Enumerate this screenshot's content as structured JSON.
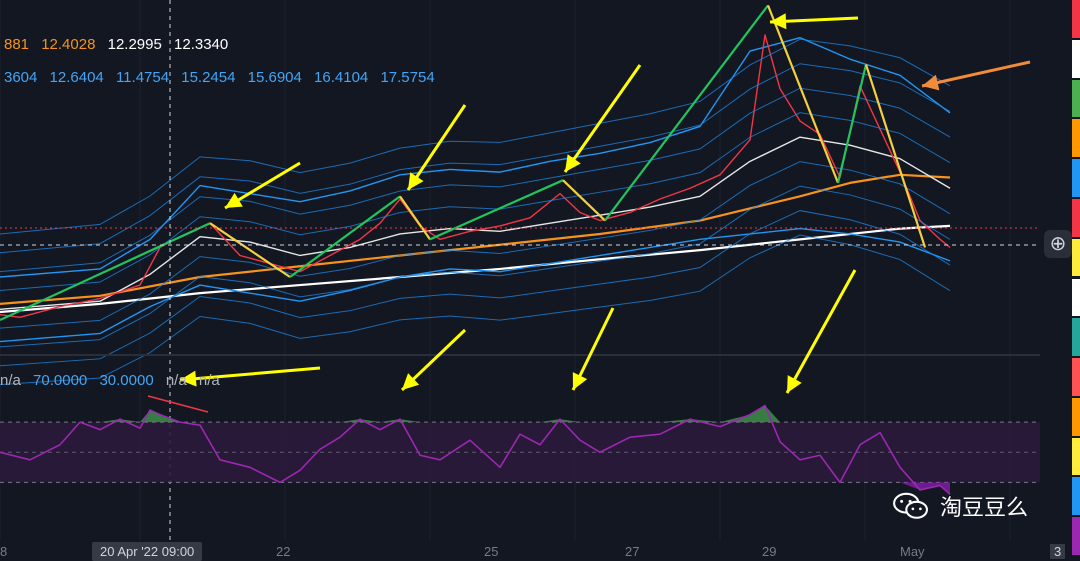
{
  "chart_data": [
    {
      "type": "line",
      "title": "",
      "xlabel": "",
      "ylabel": "",
      "x_ticks": [
        "8",
        "20 Apr '22  09:00",
        "22",
        "25",
        "27",
        "29",
        "May",
        "3"
      ],
      "legend_values": {
        "row1": [
          "881",
          "12.4028",
          "12.2995",
          "12.3340"
        ],
        "row2": [
          "3604",
          "12.6404",
          "11.4754",
          "15.2454",
          "15.6904",
          "16.4104",
          "17.5754"
        ]
      },
      "series": [
        {
          "name": "",
          "color": "#ffffff",
          "x": [
            0,
            100,
            200,
            300,
            400,
            500,
            600,
            700,
            800,
            900,
            950
          ],
          "values": [
            11.4,
            11.55,
            11.75,
            11.9,
            12.05,
            12.2,
            12.38,
            12.55,
            12.75,
            12.95,
            13.0
          ]
        },
        {
          "name": "",
          "color": "#f7931a",
          "x": [
            0,
            100,
            200,
            300,
            400,
            500,
            600,
            700,
            800,
            850,
            900,
            950
          ],
          "values": [
            11.55,
            11.7,
            12.05,
            12.25,
            12.45,
            12.65,
            12.85,
            13.1,
            13.55,
            13.8,
            13.95,
            13.9
          ]
        },
        {
          "name": "",
          "color": "#e6e6e6",
          "x": [
            0,
            100,
            150,
            200,
            250,
            300,
            350,
            400,
            450,
            500,
            550,
            600,
            650,
            700,
            750,
            800,
            850,
            900,
            950
          ],
          "values": [
            11.45,
            11.6,
            12.1,
            12.8,
            12.7,
            12.45,
            12.6,
            12.85,
            12.95,
            12.9,
            13.05,
            13.2,
            13.35,
            13.55,
            14.2,
            14.65,
            14.5,
            14.25,
            13.7
          ]
        },
        {
          "name": "",
          "color": "#2196f3",
          "x": [
            0,
            100,
            150,
            200,
            250,
            300,
            350,
            400,
            450,
            500,
            550,
            600,
            650,
            700,
            750,
            800,
            850,
            900,
            950
          ],
          "values": [
            12.05,
            12.2,
            12.75,
            13.75,
            13.6,
            13.45,
            13.65,
            13.95,
            14.05,
            14.0,
            14.2,
            14.35,
            14.55,
            14.85,
            16.25,
            16.5,
            16.1,
            15.8,
            15.1
          ]
        },
        {
          "name": "",
          "color": "#2196f3",
          "x": [
            0,
            100,
            150,
            200,
            250,
            300,
            350,
            400,
            450,
            500,
            550,
            600,
            650,
            700,
            750,
            800,
            850,
            900,
            950
          ],
          "values": [
            10.85,
            11.0,
            11.5,
            11.9,
            11.75,
            11.6,
            11.8,
            12.05,
            12.2,
            12.15,
            12.3,
            12.45,
            12.6,
            12.75,
            12.85,
            12.95,
            12.85,
            12.7,
            12.35
          ]
        },
        {
          "name": "",
          "color": "#f23645",
          "x": [
            0,
            20,
            60,
            100,
            140,
            160,
            180,
            210,
            240,
            270,
            300,
            330,
            360,
            380,
            400,
            420,
            440,
            470,
            500,
            530,
            560,
            580,
            600,
            630,
            660,
            690,
            720,
            750,
            765,
            780,
            800,
            820,
            840,
            860,
            880,
            900,
            920,
            940,
            950
          ],
          "values": [
            11.35,
            11.3,
            11.5,
            11.65,
            11.9,
            12.6,
            12.8,
            13.05,
            12.45,
            12.3,
            12.15,
            12.45,
            12.75,
            13.05,
            13.5,
            13.0,
            12.75,
            12.9,
            13.0,
            13.15,
            13.6,
            13.25,
            13.1,
            13.25,
            13.5,
            13.7,
            13.95,
            14.6,
            16.55,
            15.55,
            14.95,
            14.7,
            13.9,
            15.6,
            14.8,
            14.0,
            13.1,
            12.75,
            12.6
          ]
        }
      ],
      "ylim": [
        10.6,
        17.2
      ],
      "xlim": [
        0,
        1040
      ],
      "annotation_arrows_color": "#ffff00",
      "secondary_arrow_color": "#f28c38",
      "trend_lines": [
        {
          "color": "#21c55d",
          "from": [
            0,
            11.25
          ],
          "to": [
            210,
            13.05
          ]
        },
        {
          "color": "#f4d03f",
          "from": [
            210,
            13.05
          ],
          "to": [
            290,
            12.05
          ]
        },
        {
          "color": "#21c55d",
          "from": [
            290,
            12.05
          ],
          "to": [
            400,
            13.55
          ]
        },
        {
          "color": "#f4d03f",
          "from": [
            400,
            13.55
          ],
          "to": [
            430,
            12.75
          ]
        },
        {
          "color": "#21c55d",
          "from": [
            430,
            12.75
          ],
          "to": [
            563,
            13.85
          ]
        },
        {
          "color": "#f4d03f",
          "from": [
            563,
            13.85
          ],
          "to": [
            605,
            13.1
          ]
        },
        {
          "color": "#21c55d",
          "from": [
            605,
            13.1
          ],
          "to": [
            768,
            17.1
          ]
        },
        {
          "color": "#f4d03f",
          "from": [
            768,
            17.1
          ],
          "to": [
            838,
            13.8
          ]
        },
        {
          "color": "#21c55d",
          "from": [
            838,
            13.8
          ],
          "to": [
            866,
            16.0
          ]
        },
        {
          "color": "#f4d03f",
          "from": [
            866,
            16.0
          ],
          "to": [
            925,
            12.6
          ]
        }
      ]
    },
    {
      "type": "line",
      "title": "",
      "legend": [
        "n/a",
        "70.0000",
        "30.0000",
        "n/a",
        "n/a"
      ],
      "bands": [
        70,
        30
      ],
      "ylim": [
        15,
        90
      ],
      "series": [
        {
          "name": "",
          "color": "#9c27b0",
          "x": [
            0,
            30,
            60,
            80,
            100,
            120,
            140,
            150,
            160,
            180,
            200,
            220,
            250,
            280,
            300,
            320,
            340,
            360,
            380,
            400,
            420,
            440,
            470,
            500,
            520,
            540,
            560,
            580,
            600,
            630,
            660,
            690,
            720,
            750,
            765,
            780,
            800,
            820,
            840,
            860,
            880,
            900,
            920,
            940,
            950
          ],
          "values": [
            50,
            45,
            55,
            70,
            65,
            72,
            66,
            78,
            75,
            70,
            68,
            45,
            40,
            30,
            38,
            52,
            60,
            72,
            65,
            72,
            48,
            45,
            58,
            40,
            62,
            55,
            72,
            58,
            50,
            60,
            62,
            72,
            67,
            75,
            81,
            57,
            45,
            48,
            30,
            55,
            63,
            40,
            25,
            28,
            22
          ]
        }
      ],
      "overbought_fill_color": "#3d8f4a",
      "oversold_fill_color": "#7c1fa0"
    }
  ],
  "right_stripe_colors": [
    "#f23645",
    "#ffffff",
    "#4caf50",
    "#ff9800",
    "#2196f3",
    "#f23645",
    "#ffeb3b",
    "#ffffff",
    "#26a69a",
    "#ff5252",
    "#ff9800",
    "#ffeb3b",
    "#2196f3",
    "#9c27b0"
  ],
  "watermark": {
    "text": "淘豆豆么",
    "icon": "wechat-icon"
  },
  "zoom_button": {
    "icon": "plus-circle-icon"
  }
}
